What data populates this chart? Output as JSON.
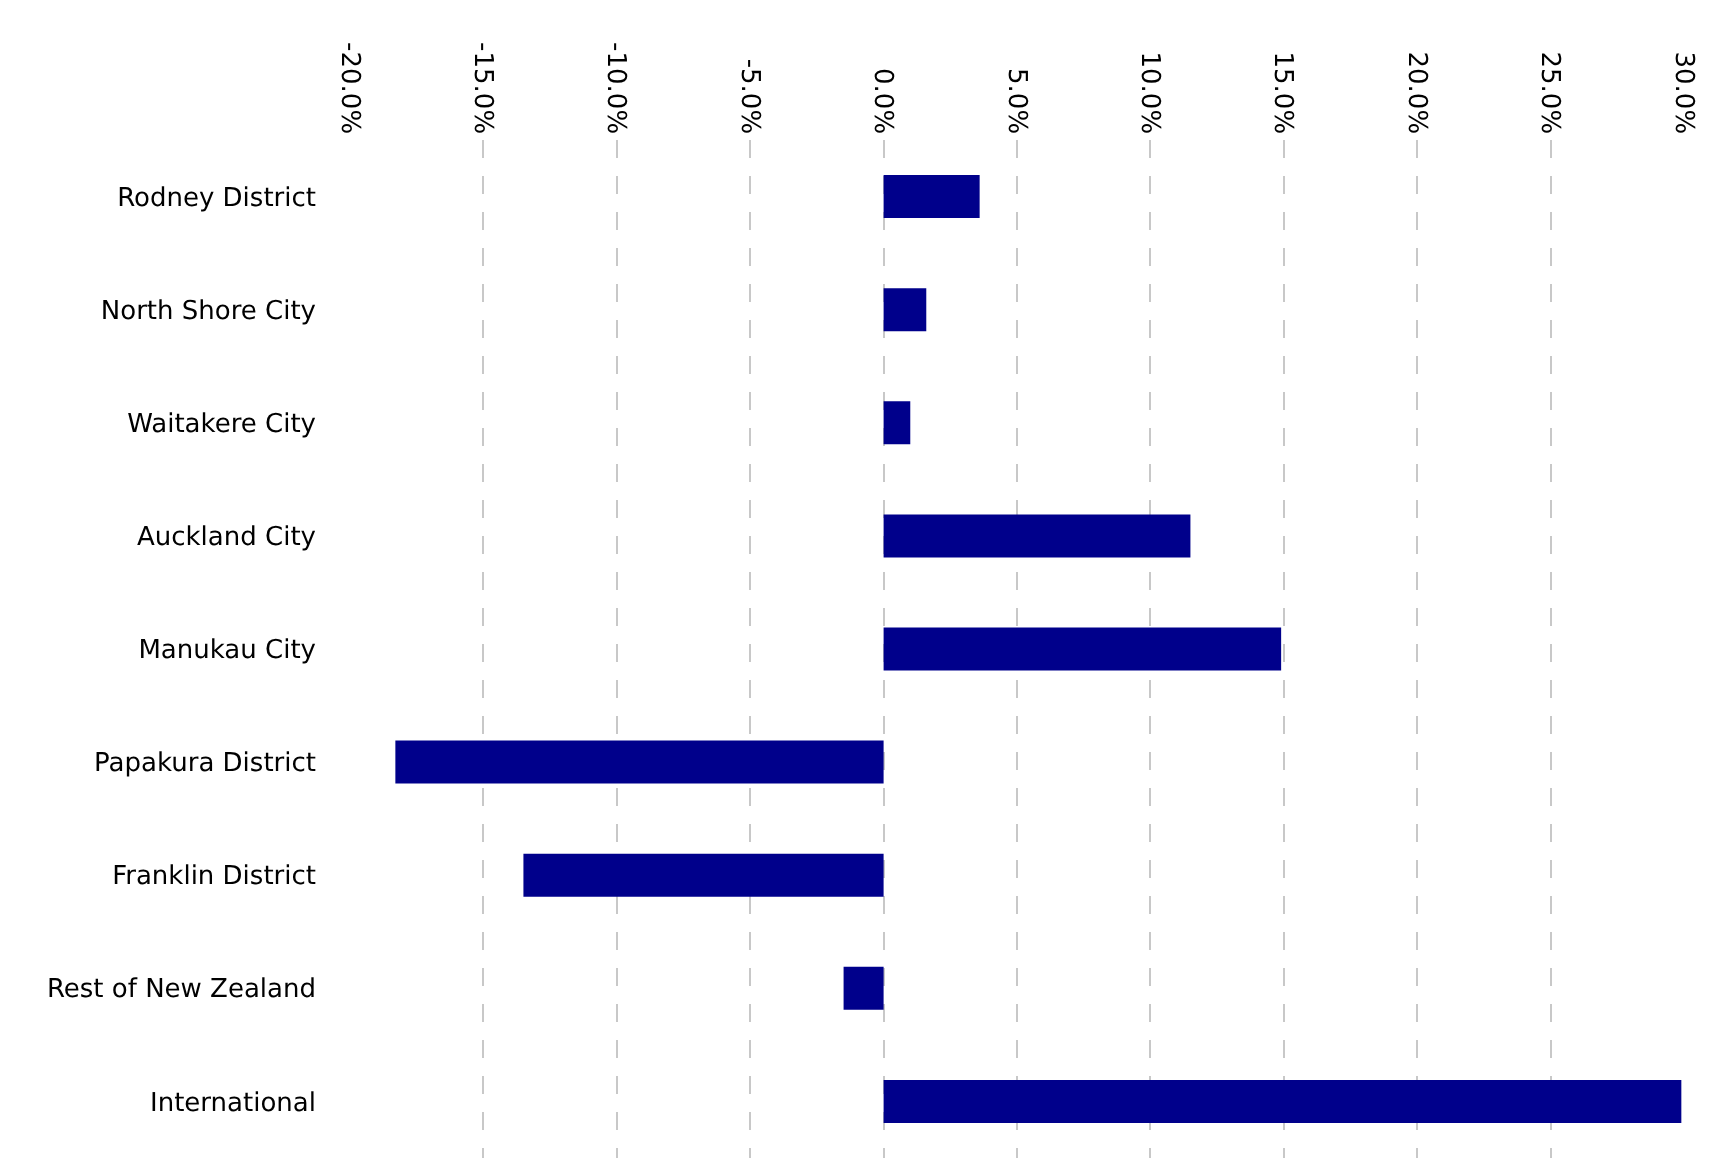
{
  "chart_data": {
    "type": "bar",
    "orientation": "horizontal",
    "categories": [
      "Rodney District",
      "North Shore City",
      "Waitakere City",
      "Auckland City",
      "Manukau City",
      "Papakura District",
      "Franklin District",
      "Rest of New Zealand",
      "International"
    ],
    "values": [
      3.6,
      1.6,
      1.0,
      11.5,
      14.9,
      -18.3,
      -13.5,
      -1.5,
      29.9
    ],
    "color": "#00008b",
    "xlim": [
      -20,
      30
    ],
    "xticks": [
      {
        "value": -20,
        "label": "-20.0%"
      },
      {
        "value": -15,
        "label": "-15.0%"
      },
      {
        "value": -10,
        "label": "-10.0%"
      },
      {
        "value": -5,
        "label": "-5.0%"
      },
      {
        "value": 0,
        "label": "0.0%"
      },
      {
        "value": 5,
        "label": "5.0%"
      },
      {
        "value": 10,
        "label": "10.0%"
      },
      {
        "value": 15,
        "label": "15.0%"
      },
      {
        "value": 20,
        "label": "20.0%"
      },
      {
        "value": 25,
        "label": "25.0%"
      },
      {
        "value": 30,
        "label": "30.0%"
      }
    ],
    "grid": "x",
    "line_style": "dashed"
  }
}
